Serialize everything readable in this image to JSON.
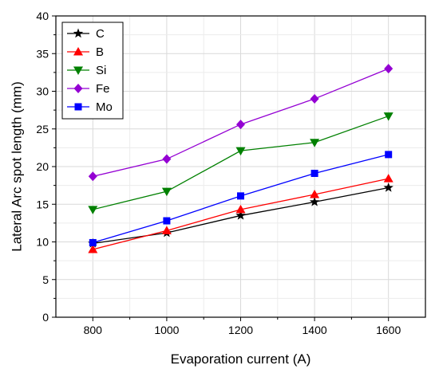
{
  "chart_data": {
    "type": "line",
    "title": "",
    "xlabel": "Evaporation current (A)",
    "ylabel": "Lateral Arc spot length (mm)",
    "x": [
      800,
      1000,
      1200,
      1400,
      1600
    ],
    "xlim": [
      700,
      1700
    ],
    "xticks": [
      800,
      1000,
      1200,
      1400,
      1600
    ],
    "ylim": [
      0,
      40
    ],
    "yticks": [
      0,
      5,
      10,
      15,
      20,
      25,
      30,
      35,
      40
    ],
    "grid": true,
    "legend_position": "top-left",
    "series": [
      {
        "name": "C",
        "color": "#000000",
        "marker": "star",
        "values": [
          9.8,
          11.2,
          13.5,
          15.3,
          17.2
        ]
      },
      {
        "name": "B",
        "color": "#ff0000",
        "marker": "triangle-up",
        "values": [
          9.0,
          11.5,
          14.3,
          16.3,
          18.4
        ]
      },
      {
        "name": "Si",
        "color": "#008000",
        "marker": "triangle-down",
        "values": [
          14.3,
          16.7,
          22.1,
          23.2,
          26.7
        ]
      },
      {
        "name": "Fe",
        "color": "#9400d3",
        "marker": "diamond",
        "values": [
          18.7,
          21.0,
          25.6,
          29.0,
          33.0
        ]
      },
      {
        "name": "Mo",
        "color": "#0000ff",
        "marker": "square",
        "values": [
          9.9,
          12.8,
          16.1,
          19.1,
          21.6
        ]
      }
    ]
  }
}
